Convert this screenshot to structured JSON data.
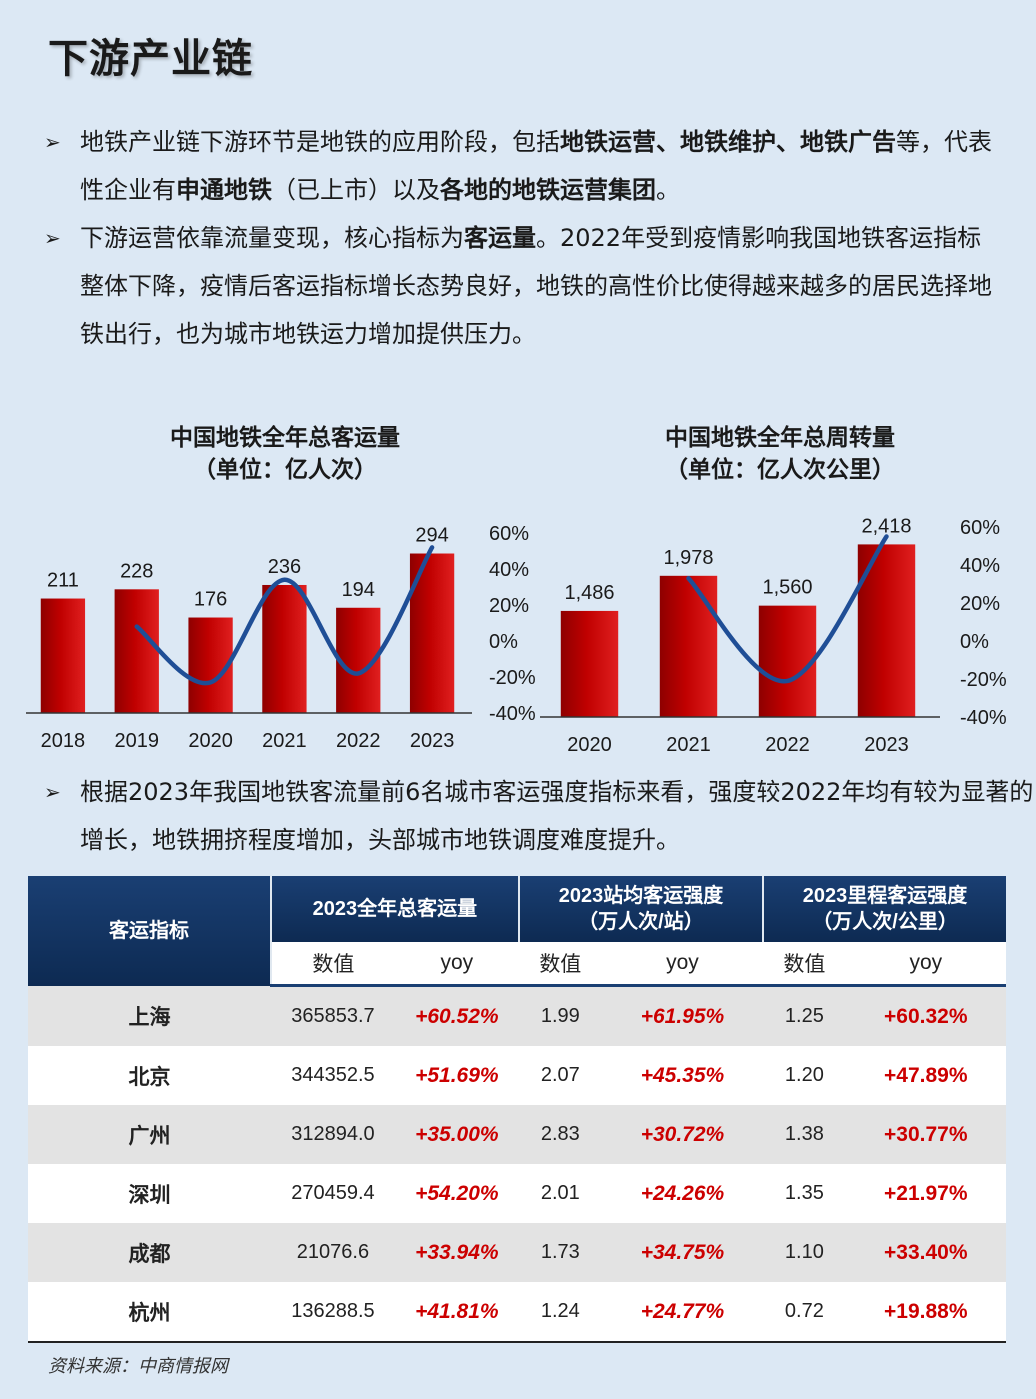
{
  "page_title": "下游产业链",
  "bullets": {
    "b1_pre": "地铁产业链下游环节是地铁的应用阶段，包括",
    "b1_bold1": "地铁运营、地铁维护、地铁广告",
    "b1_mid": "等，代表性企业有",
    "b1_bold2": "申通地铁",
    "b1_mid2": "（已上市）以及",
    "b1_bold3": "各地的地铁运营集团",
    "b1_end": "。",
    "b2_pre": "下游运营依靠流量变现，核心指标为",
    "b2_bold": "客运量",
    "b2_end": "。2022年受到疫情影响我国地铁客运指标整体下降，疫情后客运指标增长态势良好，地铁的高性价比使得越来越多的居民选择地铁出行，也为城市地铁运力增加提供压力。",
    "b3": "根据2023年我国地铁客流量前6名城市客运强度指标来看，强度较2022年均有较为显著的增长，地铁拥挤程度增加，头部城市地铁调度难度提升。",
    "arrow": "➢"
  },
  "chart_data": [
    {
      "type": "bar",
      "title": "中国地铁全年总客运量",
      "subtitle": "（单位：亿人次）",
      "categories": [
        "2018",
        "2019",
        "2020",
        "2021",
        "2022",
        "2023"
      ],
      "values": [
        211,
        228,
        176,
        236,
        194,
        294
      ],
      "value_labels": [
        "211",
        "228",
        "176",
        "236",
        "194",
        "294"
      ],
      "growth_line": {
        "x": [
          "2019",
          "2020",
          "2021",
          "2022",
          "2023"
        ],
        "values": [
          8,
          -23,
          34,
          -18,
          52
        ]
      },
      "y2_ticks": [
        "60%",
        "40%",
        "20%",
        "0%",
        "-20%",
        "-40%"
      ],
      "y2lim": [
        -40,
        60
      ],
      "colors": {
        "bar": "#c00000",
        "line": "#1f4e96"
      }
    },
    {
      "type": "bar",
      "title": "中国地铁全年总周转量",
      "subtitle": "（单位：亿人次公里）",
      "categories": [
        "2020",
        "2021",
        "2022",
        "2023"
      ],
      "values": [
        1486,
        1978,
        1560,
        2418
      ],
      "value_labels": [
        "1,486",
        "1,978",
        "1,560",
        "2,418"
      ],
      "growth_line": {
        "x": [
          "2021",
          "2022",
          "2023"
        ],
        "values": [
          33,
          -21,
          55
        ]
      },
      "y2_ticks": [
        "60%",
        "40%",
        "20%",
        "0%",
        "-20%",
        "-40%"
      ],
      "y2lim": [
        -40,
        60
      ],
      "colors": {
        "bar": "#c00000",
        "line": "#1f4e96"
      }
    }
  ],
  "table": {
    "header_label": "客运指标",
    "group1": "2023全年总客运量",
    "group2_line1": "2023站均客运强度",
    "group2_line2": "（万人次/站）",
    "group3_line1": "2023里程客运强度",
    "group3_line2": "（万人次/公里）",
    "sub_value": "数值",
    "sub_yoy": "yoy",
    "rows": [
      {
        "city": "上海",
        "v1": "365853.7",
        "y1": "+60.52%",
        "v2": "1.99",
        "y2": "+61.95%",
        "v3": "1.25",
        "y3": "+60.32%"
      },
      {
        "city": "北京",
        "v1": "344352.5",
        "y1": "+51.69%",
        "v2": "2.07",
        "y2": "+45.35%",
        "v3": "1.20",
        "y3": "+47.89%"
      },
      {
        "city": "广州",
        "v1": "312894.0",
        "y1": "+35.00%",
        "v2": "2.83",
        "y2": "+30.72%",
        "v3": "1.38",
        "y3": "+30.77%"
      },
      {
        "city": "深圳",
        "v1": "270459.4",
        "y1": "+54.20%",
        "v2": "2.01",
        "y2": "+24.26%",
        "v3": "1.35",
        "y3": "+21.97%"
      },
      {
        "city": "成都",
        "v1": "21076.6",
        "y1": "+33.94%",
        "v2": "1.73",
        "y2": "+34.75%",
        "v3": "1.10",
        "y3": "+33.40%"
      },
      {
        "city": "杭州",
        "v1": "136288.5",
        "y1": "+41.81%",
        "v2": "1.24",
        "y2": "+24.77%",
        "v3": "0.72",
        "y3": "+19.88%"
      }
    ]
  },
  "source": "资料来源：中商情报网"
}
